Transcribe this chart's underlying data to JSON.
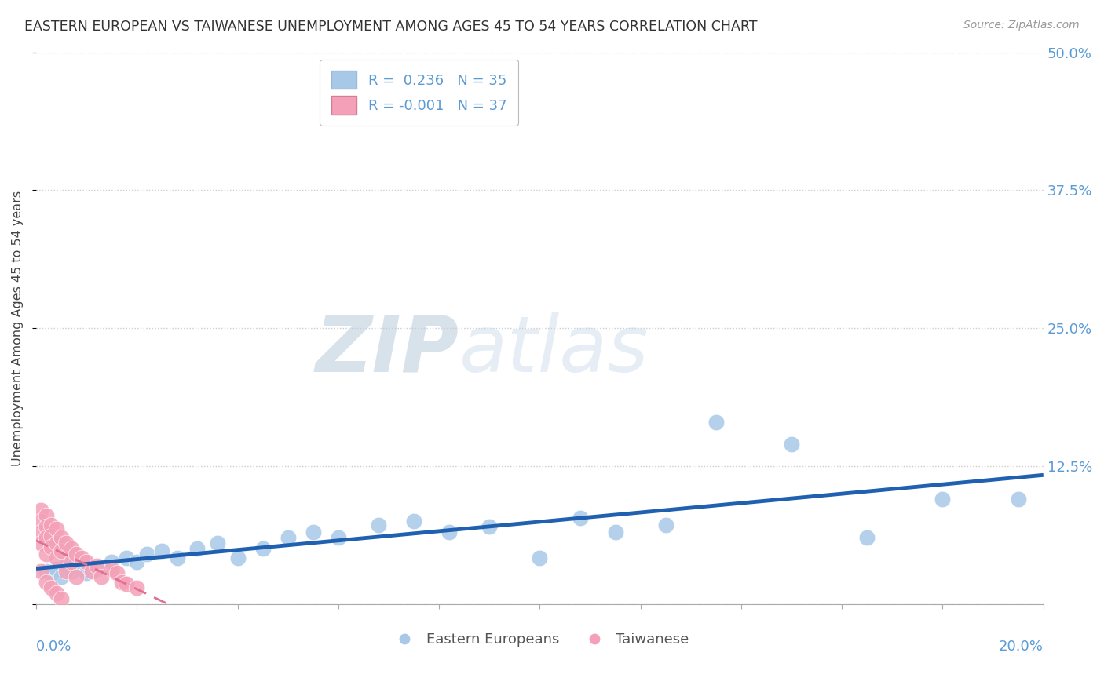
{
  "title": "EASTERN EUROPEAN VS TAIWANESE UNEMPLOYMENT AMONG AGES 45 TO 54 YEARS CORRELATION CHART",
  "source": "Source: ZipAtlas.com",
  "ylabel": "Unemployment Among Ages 45 to 54 years",
  "xlim": [
    0.0,
    0.2
  ],
  "ylim": [
    0.0,
    0.5
  ],
  "yticks": [
    0.0,
    0.125,
    0.25,
    0.375,
    0.5
  ],
  "ytick_labels": [
    "",
    "12.5%",
    "25.0%",
    "37.5%",
    "50.0%"
  ],
  "R_eastern": 0.236,
  "N_eastern": 35,
  "R_taiwanese": -0.001,
  "N_taiwanese": 37,
  "eastern_color": "#A8C8E8",
  "taiwanese_color": "#F4A0B8",
  "eastern_line_color": "#2060B0",
  "taiwanese_line_color": "#E07090",
  "watermark_zip": "ZIP",
  "watermark_atlas": "atlas",
  "eastern_x": [
    0.002,
    0.003,
    0.004,
    0.005,
    0.006,
    0.007,
    0.008,
    0.01,
    0.012,
    0.015,
    0.018,
    0.02,
    0.022,
    0.025,
    0.028,
    0.032,
    0.036,
    0.04,
    0.045,
    0.05,
    0.055,
    0.06,
    0.068,
    0.075,
    0.082,
    0.09,
    0.1,
    0.108,
    0.115,
    0.125,
    0.135,
    0.15,
    0.165,
    0.18,
    0.195
  ],
  "eastern_y": [
    0.03,
    0.028,
    0.032,
    0.025,
    0.035,
    0.03,
    0.038,
    0.028,
    0.032,
    0.038,
    0.042,
    0.038,
    0.045,
    0.048,
    0.042,
    0.05,
    0.055,
    0.042,
    0.05,
    0.06,
    0.065,
    0.06,
    0.072,
    0.075,
    0.065,
    0.07,
    0.042,
    0.078,
    0.065,
    0.072,
    0.165,
    0.145,
    0.06,
    0.095,
    0.095
  ],
  "taiwanese_x": [
    0.001,
    0.001,
    0.001,
    0.001,
    0.001,
    0.002,
    0.002,
    0.002,
    0.002,
    0.002,
    0.003,
    0.003,
    0.003,
    0.003,
    0.004,
    0.004,
    0.004,
    0.004,
    0.005,
    0.005,
    0.005,
    0.006,
    0.006,
    0.007,
    0.007,
    0.008,
    0.008,
    0.009,
    0.01,
    0.011,
    0.012,
    0.013,
    0.015,
    0.016,
    0.017,
    0.018,
    0.02
  ],
  "taiwanese_y": [
    0.085,
    0.075,
    0.065,
    0.055,
    0.03,
    0.08,
    0.07,
    0.06,
    0.045,
    0.02,
    0.072,
    0.062,
    0.052,
    0.015,
    0.068,
    0.055,
    0.042,
    0.01,
    0.06,
    0.048,
    0.005,
    0.055,
    0.03,
    0.05,
    0.038,
    0.045,
    0.025,
    0.042,
    0.038,
    0.03,
    0.035,
    0.025,
    0.032,
    0.028,
    0.02,
    0.018,
    0.015
  ]
}
